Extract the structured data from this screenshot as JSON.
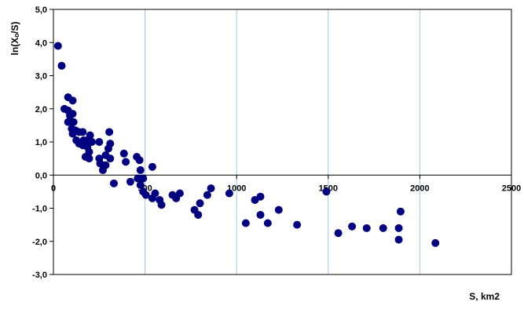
{
  "chart_data": {
    "type": "scatter",
    "title": "",
    "xlabel": "S, km2",
    "ylabel": "ln(Xₒ/S)",
    "xlim": [
      0,
      2500
    ],
    "ylim": [
      -3,
      5
    ],
    "x_ticks": [
      0,
      500,
      1000,
      1500,
      2000,
      2500
    ],
    "x_tick_labels": [
      "0",
      "500",
      "1000",
      "1500",
      "2000",
      "2500"
    ],
    "y_ticks": [
      5,
      4,
      3,
      2,
      1,
      0,
      -1,
      -2,
      -3
    ],
    "y_tick_labels": [
      "5,0",
      "4,0",
      "3,0",
      "2,0",
      "1,0",
      "0,0",
      "-1,0",
      "-2,0",
      "-3,0"
    ],
    "vertical_grid": true,
    "horizontal_grid": false,
    "marker_color": "#000080",
    "grid_color": "#9fc5e8",
    "axis_color": "#000000",
    "points": [
      {
        "x": 25,
        "y": 3.9
      },
      {
        "x": 45,
        "y": 3.3
      },
      {
        "x": 60,
        "y": 2.0
      },
      {
        "x": 80,
        "y": 2.35
      },
      {
        "x": 105,
        "y": 2.25
      },
      {
        "x": 80,
        "y": 1.95
      },
      {
        "x": 90,
        "y": 1.8
      },
      {
        "x": 105,
        "y": 1.85
      },
      {
        "x": 90,
        "y": 1.65
      },
      {
        "x": 80,
        "y": 1.6
      },
      {
        "x": 110,
        "y": 1.6
      },
      {
        "x": 100,
        "y": 1.4
      },
      {
        "x": 120,
        "y": 1.35
      },
      {
        "x": 105,
        "y": 1.25
      },
      {
        "x": 140,
        "y": 1.3
      },
      {
        "x": 160,
        "y": 1.3
      },
      {
        "x": 125,
        "y": 1.05
      },
      {
        "x": 140,
        "y": 0.95
      },
      {
        "x": 160,
        "y": 0.9
      },
      {
        "x": 165,
        "y": 1.05
      },
      {
        "x": 185,
        "y": 1.05
      },
      {
        "x": 200,
        "y": 1.2
      },
      {
        "x": 210,
        "y": 1.0
      },
      {
        "x": 185,
        "y": 0.85
      },
      {
        "x": 195,
        "y": 0.7
      },
      {
        "x": 175,
        "y": 0.55
      },
      {
        "x": 195,
        "y": 0.5
      },
      {
        "x": 250,
        "y": 1.0
      },
      {
        "x": 250,
        "y": 0.5
      },
      {
        "x": 255,
        "y": 0.35
      },
      {
        "x": 270,
        "y": 0.15
      },
      {
        "x": 285,
        "y": 0.3
      },
      {
        "x": 285,
        "y": 0.6
      },
      {
        "x": 300,
        "y": 0.8
      },
      {
        "x": 305,
        "y": 1.3
      },
      {
        "x": 310,
        "y": 0.95
      },
      {
        "x": 310,
        "y": 0.5
      },
      {
        "x": 330,
        "y": -0.25
      },
      {
        "x": 385,
        "y": 0.65
      },
      {
        "x": 395,
        "y": 0.4
      },
      {
        "x": 420,
        "y": -0.2
      },
      {
        "x": 455,
        "y": 0.55
      },
      {
        "x": 470,
        "y": 0.45
      },
      {
        "x": 475,
        "y": 0.15
      },
      {
        "x": 460,
        "y": -0.1
      },
      {
        "x": 475,
        "y": -0.3
      },
      {
        "x": 490,
        "y": -0.1
      },
      {
        "x": 490,
        "y": -0.5
      },
      {
        "x": 505,
        "y": -0.6
      },
      {
        "x": 540,
        "y": 0.25
      },
      {
        "x": 540,
        "y": -0.7
      },
      {
        "x": 555,
        "y": -0.55
      },
      {
        "x": 580,
        "y": -0.75
      },
      {
        "x": 590,
        "y": -0.9
      },
      {
        "x": 650,
        "y": -0.6
      },
      {
        "x": 670,
        "y": -0.7
      },
      {
        "x": 690,
        "y": -0.55
      },
      {
        "x": 770,
        "y": -1.05
      },
      {
        "x": 790,
        "y": -1.2
      },
      {
        "x": 800,
        "y": -0.85
      },
      {
        "x": 840,
        "y": -0.6
      },
      {
        "x": 860,
        "y": -0.4
      },
      {
        "x": 960,
        "y": -0.55
      },
      {
        "x": 1050,
        "y": -1.45
      },
      {
        "x": 1100,
        "y": -0.75
      },
      {
        "x": 1130,
        "y": -0.65
      },
      {
        "x": 1130,
        "y": -1.2
      },
      {
        "x": 1170,
        "y": -1.45
      },
      {
        "x": 1230,
        "y": -1.05
      },
      {
        "x": 1330,
        "y": -1.5
      },
      {
        "x": 1490,
        "y": -0.5
      },
      {
        "x": 1555,
        "y": -1.75
      },
      {
        "x": 1630,
        "y": -1.55
      },
      {
        "x": 1710,
        "y": -1.6
      },
      {
        "x": 1800,
        "y": -1.6
      },
      {
        "x": 1885,
        "y": -1.6
      },
      {
        "x": 1885,
        "y": -1.95
      },
      {
        "x": 1895,
        "y": -1.1
      },
      {
        "x": 2085,
        "y": -2.05
      }
    ]
  }
}
